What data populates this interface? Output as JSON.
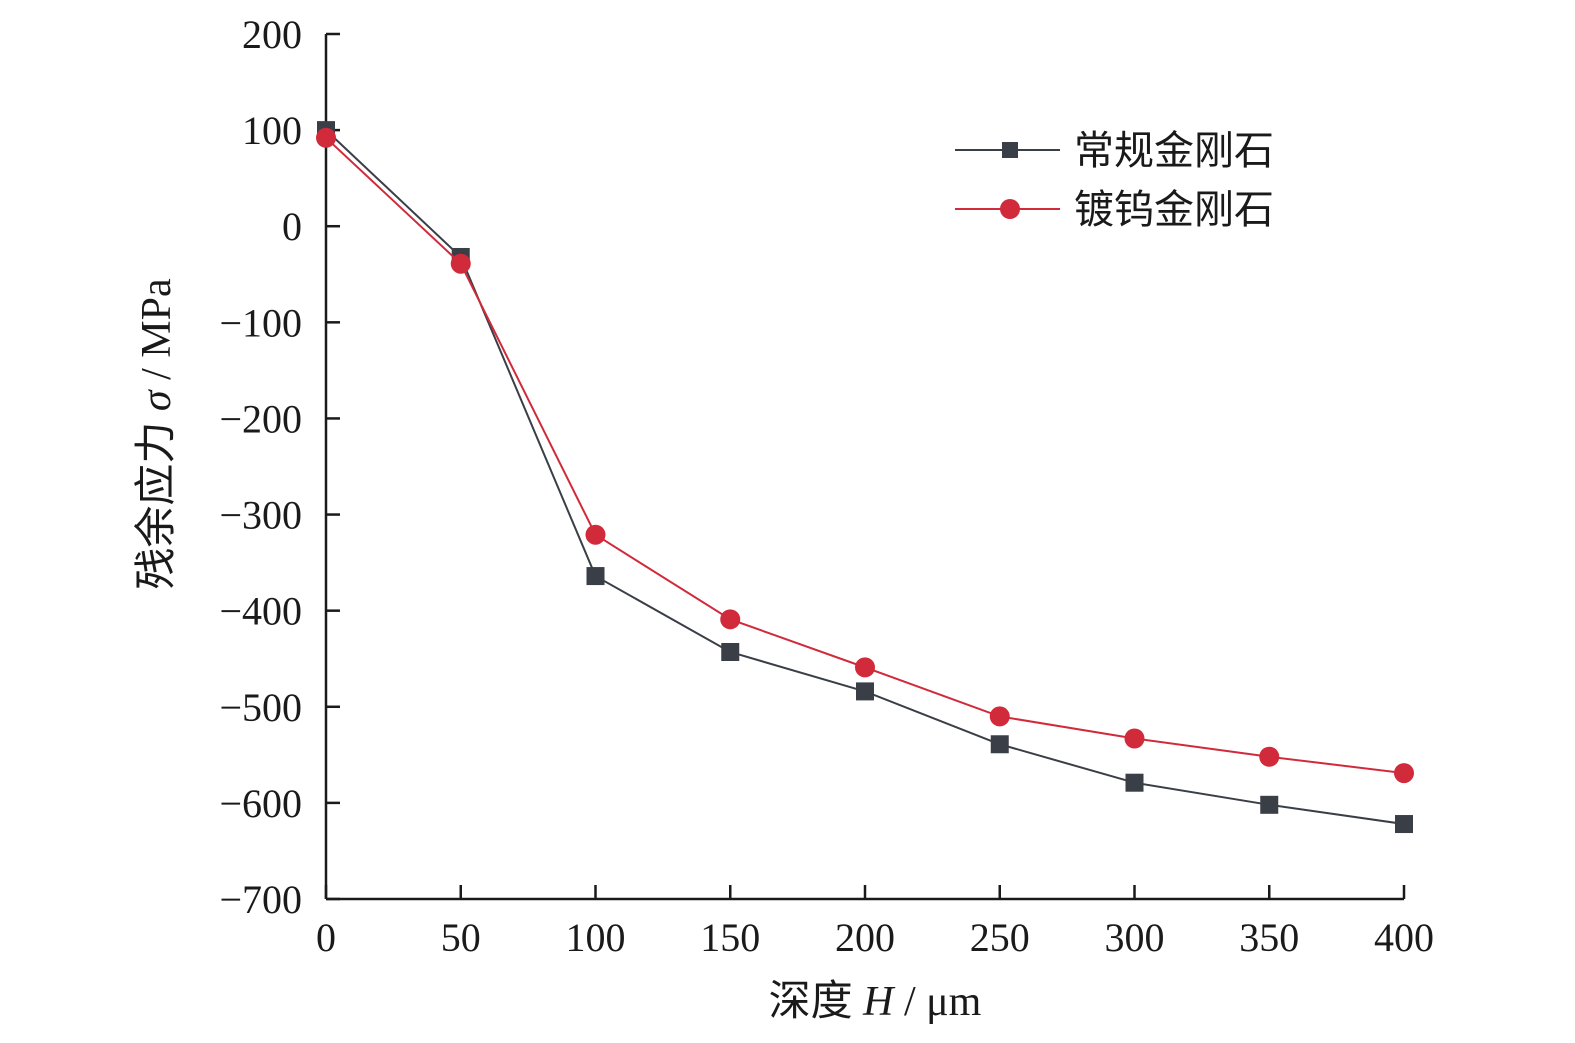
{
  "chart_data": {
    "type": "line",
    "title": "",
    "xlabel": "深度 H / μm",
    "ylabel": "残余应力 σ / MPa",
    "xlabel_parts": {
      "prefix": "深度 ",
      "var": "H",
      "suffix": " / μm"
    },
    "ylabel_parts": {
      "prefix": "残余应力 ",
      "var": "σ",
      "suffix": " / MPa"
    },
    "xlim": [
      0,
      400
    ],
    "ylim": [
      -700,
      200
    ],
    "xticks": [
      0,
      50,
      100,
      150,
      200,
      250,
      300,
      350,
      400
    ],
    "yticks": [
      200,
      100,
      0,
      -100,
      -200,
      -300,
      -400,
      -500,
      -600,
      -700
    ],
    "ytick_labels": [
      "200",
      "100",
      "0",
      "−100",
      "−200",
      "−300",
      "−400",
      "−500",
      "−600",
      "−700"
    ],
    "grid": false,
    "legend_position": "top-right",
    "x": [
      0,
      50,
      100,
      150,
      200,
      250,
      300,
      350,
      400
    ],
    "series": [
      {
        "name": "常规金刚石",
        "marker": "square",
        "color": "#3a3e46",
        "values": [
          100,
          -32,
          -364,
          -443,
          -484,
          -539,
          -579,
          -602,
          -622
        ]
      },
      {
        "name": "镀钨金刚石",
        "marker": "circle",
        "color": "#d12a3a",
        "values": [
          92,
          -39,
          -321,
          -409,
          -459,
          -510,
          -533,
          -552,
          -569
        ]
      }
    ]
  }
}
